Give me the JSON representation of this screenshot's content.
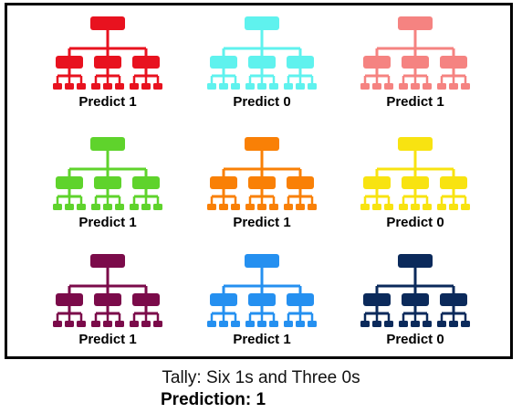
{
  "trees": [
    {
      "label": "Predict 1",
      "color": "#e8121f"
    },
    {
      "label": "Predict 0",
      "color": "#5ff2ee"
    },
    {
      "label": "Predict 1",
      "color": "#f58381"
    },
    {
      "label": "Predict 1",
      "color": "#5fd32c"
    },
    {
      "label": "Predict 1",
      "color": "#f98006"
    },
    {
      "label": "Predict 0",
      "color": "#f8e311"
    },
    {
      "label": "Predict 1",
      "color": "#7b0b4a"
    },
    {
      "label": "Predict 1",
      "color": "#2590f0"
    },
    {
      "label": "Predict 0",
      "color": "#0b2a5b"
    }
  ],
  "tally": "Tally: Six 1s and Three 0s",
  "prediction": "Prediction: 1"
}
